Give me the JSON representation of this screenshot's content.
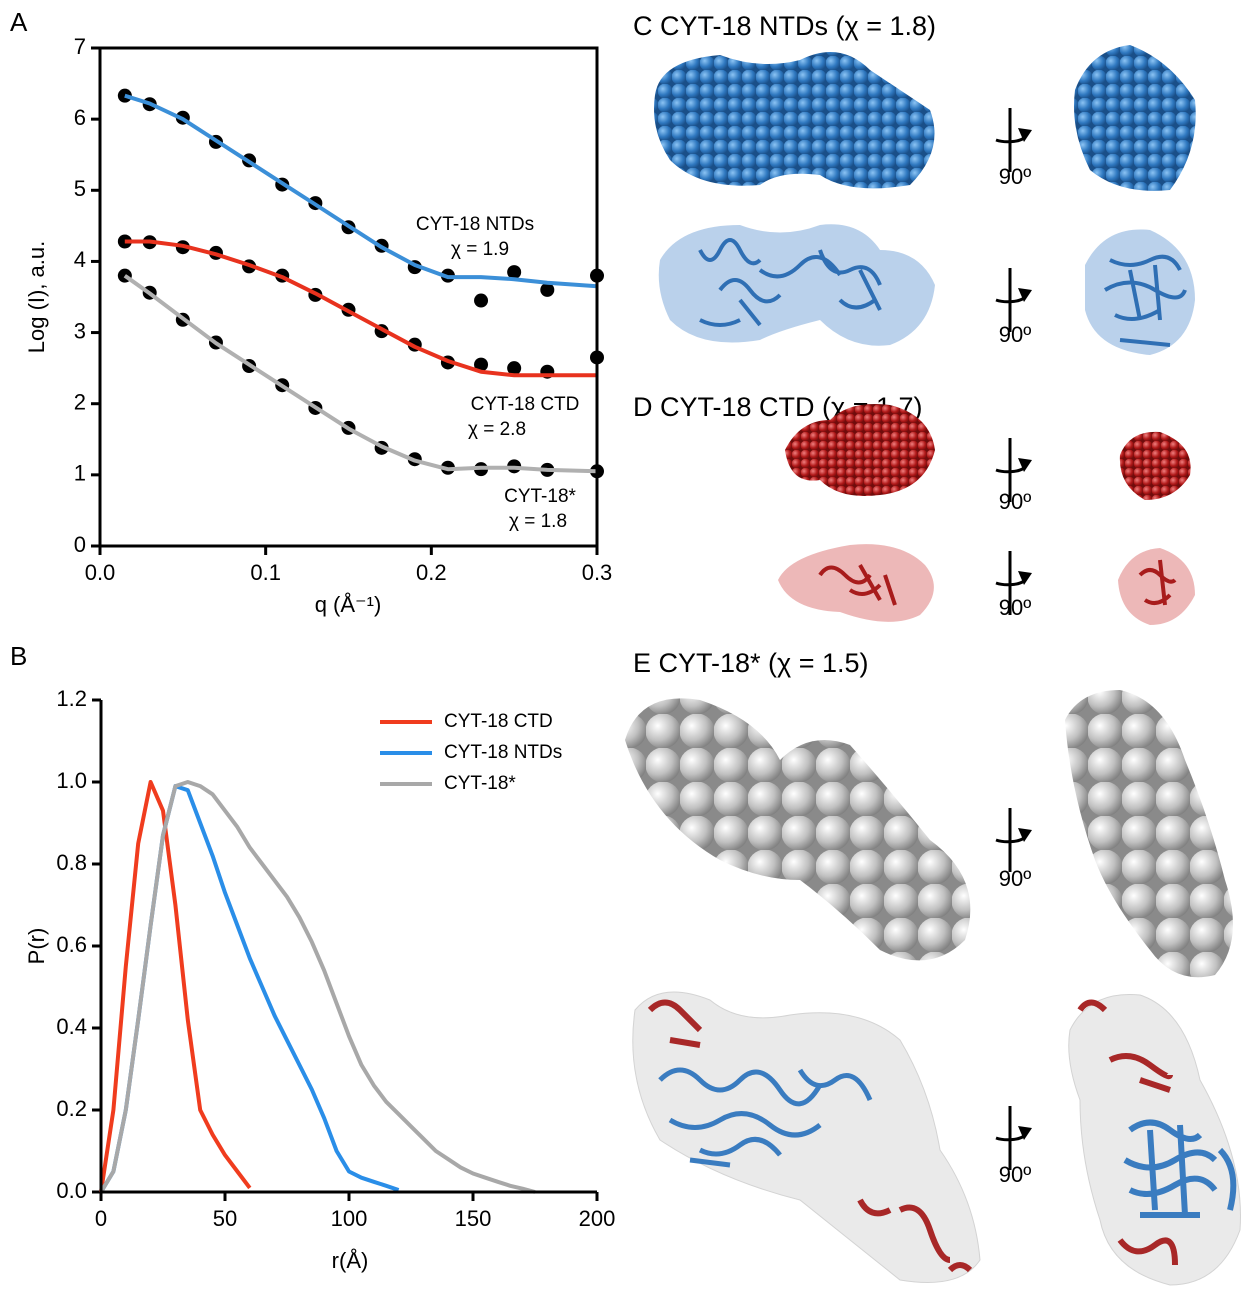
{
  "panel_labels": [
    "A",
    "B"
  ],
  "rotation_label": "90º",
  "panels": {
    "C": {
      "title": "C CYT-18 NTDs (χ = 1.8)"
    },
    "D": {
      "title": "D CYT-18 CTD (χ = 1.7)"
    },
    "E": {
      "title": "E CYT-18* (χ = 1.5)"
    }
  },
  "chart_data": [
    {
      "type": "line",
      "x_label": "q (Å⁻¹)",
      "y_label": "Log (I), a.u.",
      "frame": true,
      "x": [
        0.015,
        0.03,
        0.05,
        0.07,
        0.09,
        0.11,
        0.13,
        0.15,
        0.17,
        0.19,
        0.21,
        0.23,
        0.25,
        0.27,
        0.3
      ],
      "xlim": [
        0,
        0.3
      ],
      "xticks": [
        {
          "value": 0,
          "label": "0.0"
        },
        0.1,
        0.2,
        0.3
      ],
      "ylim": [
        0,
        7
      ],
      "yticks": [
        0,
        1,
        2,
        3,
        4,
        5,
        6,
        7
      ],
      "points": [
        {
          "color": "#000000",
          "values": [
            6.33,
            6.21,
            6.02,
            5.68,
            5.42,
            5.08,
            4.82,
            4.48,
            4.22,
            3.92,
            3.8,
            3.45,
            3.85,
            3.6,
            3.8
          ]
        },
        {
          "color": "#000000",
          "values": [
            4.28,
            4.27,
            4.2,
            4.12,
            3.93,
            3.8,
            3.53,
            3.32,
            3.02,
            2.83,
            2.58,
            2.55,
            2.5,
            2.45,
            2.65
          ]
        },
        {
          "color": "#000000",
          "values": [
            3.8,
            3.56,
            3.18,
            2.86,
            2.53,
            2.26,
            1.94,
            1.66,
            1.38,
            1.22,
            1.1,
            1.08,
            1.12,
            1.07,
            1.05
          ]
        }
      ],
      "series": [
        {
          "color": "#3b8fd8",
          "values": [
            6.33,
            6.22,
            6.0,
            5.7,
            5.4,
            5.1,
            4.8,
            4.5,
            4.2,
            3.95,
            3.78,
            3.78,
            3.75,
            3.7,
            3.65
          ]
        },
        {
          "color": "#e8321e",
          "values": [
            4.28,
            4.28,
            4.22,
            4.1,
            3.95,
            3.78,
            3.55,
            3.3,
            3.05,
            2.8,
            2.6,
            2.45,
            2.4,
            2.4,
            2.4
          ]
        },
        {
          "color": "#b0b0b0",
          "values": [
            3.8,
            3.55,
            3.2,
            2.85,
            2.55,
            2.25,
            1.95,
            1.65,
            1.4,
            1.2,
            1.08,
            1.1,
            1.1,
            1.07,
            1.05
          ]
        }
      ],
      "annotations": [
        {
          "text": "CYT-18 NTDs",
          "color": "#3a7cc0"
        },
        {
          "text": "χ = 1.9",
          "color": "#3a7cc0"
        },
        {
          "text": "CYT-18 CTD",
          "color": "#c0282d"
        },
        {
          "text": "χ = 2.8",
          "color": "#c0282d"
        },
        {
          "text": "CYT-18*",
          "color": "#a8a8a8"
        },
        {
          "text": "χ = 1.8",
          "color": "#a8a8a8"
        }
      ]
    },
    {
      "type": "line",
      "x_label": "r(Å)",
      "y_label": "P(r)",
      "frame": false,
      "legend": "top-right",
      "x": [
        0,
        5,
        10,
        15,
        20,
        25,
        30,
        35,
        40,
        45,
        50,
        55,
        60,
        65,
        70,
        75,
        80,
        85,
        90,
        95,
        100,
        105,
        110,
        115,
        120,
        125,
        130,
        135,
        140,
        145,
        150,
        155,
        160,
        165,
        170,
        175
      ],
      "xlim": [
        0,
        200
      ],
      "xticks": [
        0,
        50,
        100,
        150,
        200
      ],
      "ylim": [
        0,
        1.2
      ],
      "yticks": [
        {
          "value": 0,
          "label": "0.0"
        },
        0.2,
        0.4,
        0.6,
        0.8,
        {
          "value": 1,
          "label": "1.0"
        },
        1.2
      ],
      "series": [
        {
          "name": "CYT-18 CTD",
          "color": "#f03c1e",
          "values": [
            0,
            0.2,
            0.55,
            0.85,
            1.0,
            0.93,
            0.7,
            0.42,
            0.2,
            0.14,
            0.09,
            0.05,
            0.01,
            null,
            null,
            null,
            null,
            null,
            null,
            null,
            null,
            null,
            null,
            null,
            null,
            null,
            null,
            null,
            null,
            null,
            null,
            null,
            null,
            null,
            null,
            null
          ]
        },
        {
          "name": "CYT-18 NTDs",
          "color": "#2a8ee8",
          "values": [
            0,
            0.05,
            0.2,
            0.42,
            0.65,
            0.87,
            0.99,
            0.98,
            0.9,
            0.82,
            0.73,
            0.65,
            0.57,
            0.5,
            0.43,
            0.37,
            0.31,
            0.25,
            0.18,
            0.1,
            0.05,
            0.035,
            0.025,
            0.015,
            0.005,
            null,
            null,
            null,
            null,
            null,
            null,
            null,
            null,
            null,
            null,
            null
          ]
        },
        {
          "name": "CYT-18*",
          "color": "#a8a8a8",
          "values": [
            0,
            0.05,
            0.2,
            0.42,
            0.65,
            0.87,
            0.99,
            1.0,
            0.99,
            0.97,
            0.93,
            0.89,
            0.84,
            0.8,
            0.76,
            0.72,
            0.67,
            0.61,
            0.54,
            0.46,
            0.38,
            0.31,
            0.26,
            0.22,
            0.19,
            0.16,
            0.13,
            0.1,
            0.08,
            0.06,
            0.045,
            0.035,
            0.025,
            0.015,
            0.008,
            0
          ]
        }
      ]
    }
  ]
}
